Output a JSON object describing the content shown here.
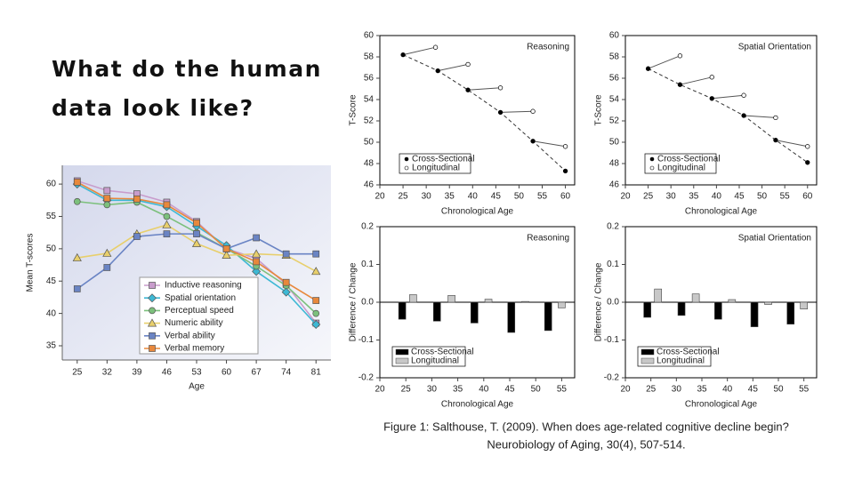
{
  "slide": {
    "title": "What do the human data look like?",
    "caption": [
      "Figure 1: Salthouse, T. (2009). When does age-related cognitive decline begin?",
      "Neurobiology of Aging, 30(4), 507-514."
    ]
  },
  "chart_data": [
    {
      "type": "line",
      "xlabel": "Age",
      "ylabel": "Mean T-scores",
      "categories": [
        "25",
        "32",
        "39",
        "46",
        "53",
        "60",
        "67",
        "74",
        "81"
      ],
      "ylim": [
        32.8,
        62.9
      ],
      "yticks": [
        35,
        40,
        45,
        50,
        55,
        60
      ],
      "series": [
        {
          "name": "Inductive reasoning",
          "color": "#c89ccc",
          "marker": "square",
          "values": [
            60.5,
            59,
            58.5,
            57.2,
            54.2,
            50,
            48.5,
            44.5,
            38.5
          ]
        },
        {
          "name": "Spatial orientation",
          "color": "#3db8d4",
          "marker": "diamond",
          "values": [
            60,
            57.5,
            57.5,
            56.5,
            53.5,
            50.5,
            46.5,
            43.3,
            38.3
          ]
        },
        {
          "name": "Perceptual speed",
          "color": "#7cc07c",
          "marker": "circle",
          "values": [
            57.3,
            56.8,
            57.2,
            55,
            52.5,
            50,
            47.3,
            44.3,
            40
          ]
        },
        {
          "name": "Numeric ability",
          "color": "#e8cf6c",
          "marker": "triangle",
          "values": [
            48.6,
            49.3,
            52.3,
            53.7,
            50.8,
            49,
            49.2,
            49,
            46.5
          ]
        },
        {
          "name": "Verbal ability",
          "color": "#6a84c4",
          "marker": "square",
          "values": [
            43.8,
            47.1,
            51.9,
            52.3,
            52.3,
            50,
            51.7,
            49.2,
            49.2
          ]
        },
        {
          "name": "Verbal memory",
          "color": "#e8883c",
          "marker": "square",
          "values": [
            60.3,
            57.8,
            57.7,
            56.8,
            54,
            50,
            48,
            44.8,
            42
          ]
        }
      ]
    },
    {
      "type": "scatter",
      "title": "Reasoning",
      "xlabel": "Chronological Age",
      "ylabel": "T-Score",
      "xlim": [
        20,
        62
      ],
      "xticks": [
        20,
        25,
        30,
        35,
        40,
        45,
        50,
        55,
        60
      ],
      "ylim": [
        46,
        60
      ],
      "yticks": [
        46,
        48,
        50,
        52,
        54,
        56,
        58,
        60
      ],
      "series": [
        {
          "name": "Cross-Sectional",
          "color": "#000000",
          "x": [
            25,
            32.5,
            39,
            46,
            53,
            60
          ],
          "values": [
            58.2,
            56.7,
            54.9,
            52.8,
            50.1,
            47.3
          ]
        },
        {
          "name": "Longitudinal",
          "color": "#ffffff",
          "x": [
            32,
            39,
            46,
            53,
            60
          ],
          "values": [
            58.9,
            57.3,
            55.1,
            52.9,
            49.6
          ]
        }
      ]
    },
    {
      "type": "scatter",
      "title": "Spatial Orientation",
      "xlabel": "Chronological Age",
      "ylabel": "T-Score",
      "xlim": [
        20,
        62
      ],
      "xticks": [
        20,
        25,
        30,
        35,
        40,
        45,
        50,
        55,
        60
      ],
      "ylim": [
        46,
        60
      ],
      "yticks": [
        46,
        48,
        50,
        52,
        54,
        56,
        58,
        60
      ],
      "series": [
        {
          "name": "Cross-Sectional",
          "color": "#000000",
          "x": [
            25,
            32,
            39,
            46,
            53,
            60
          ],
          "values": [
            56.9,
            55.4,
            54.1,
            52.5,
            50.2,
            48.1
          ]
        },
        {
          "name": "Longitudinal",
          "color": "#ffffff",
          "x": [
            32,
            39,
            46,
            53,
            60
          ],
          "values": [
            58.1,
            56.1,
            54.4,
            52.3,
            49.6
          ]
        }
      ]
    },
    {
      "type": "bar",
      "title": "Reasoning",
      "xlabel": "Chronological Age",
      "ylabel": "Difference / Change",
      "xlim": [
        20,
        57.5
      ],
      "xticks": [
        20,
        25,
        30,
        35,
        40,
        45,
        50,
        55
      ],
      "ylim": [
        -0.2,
        0.2
      ],
      "yticks": [
        -0.2,
        -0.1,
        {
          "value": 0,
          "label": "0.0"
        },
        0.1,
        0.2
      ],
      "series": [
        {
          "name": "Cross-Sectional",
          "color": "#000000",
          "x": [
            24.3,
            31,
            38.2,
            45.3,
            52.4
          ],
          "values": [
            -0.045,
            -0.05,
            -0.055,
            -0.08,
            -0.075
          ]
        },
        {
          "name": "Longitudinal",
          "color": "#c8c8c8",
          "x": [
            26.4,
            33.8,
            40.9,
            48,
            55
          ],
          "values": [
            0.02,
            0.018,
            0.008,
            0.002,
            -0.015
          ]
        }
      ]
    },
    {
      "type": "bar",
      "title": "Spatial Orientation",
      "xlabel": "Chronological Age",
      "ylabel": "Difference / Change",
      "xlim": [
        20,
        57.5
      ],
      "xticks": [
        20,
        25,
        30,
        35,
        40,
        45,
        50,
        55
      ],
      "ylim": [
        -0.2,
        0.2
      ],
      "yticks": [
        -0.2,
        -0.1,
        {
          "value": 0,
          "label": "0.0"
        },
        0.1,
        0.2
      ],
      "series": [
        {
          "name": "Cross-Sectional",
          "color": "#000000",
          "x": [
            24.3,
            31,
            38.2,
            45.3,
            52.4
          ],
          "values": [
            -0.04,
            -0.035,
            -0.045,
            -0.065,
            -0.058
          ]
        },
        {
          "name": "Longitudinal",
          "color": "#c8c8c8",
          "x": [
            26.4,
            33.8,
            40.9,
            48,
            55
          ],
          "values": [
            0.035,
            0.022,
            0.007,
            -0.006,
            -0.018
          ]
        }
      ]
    }
  ]
}
